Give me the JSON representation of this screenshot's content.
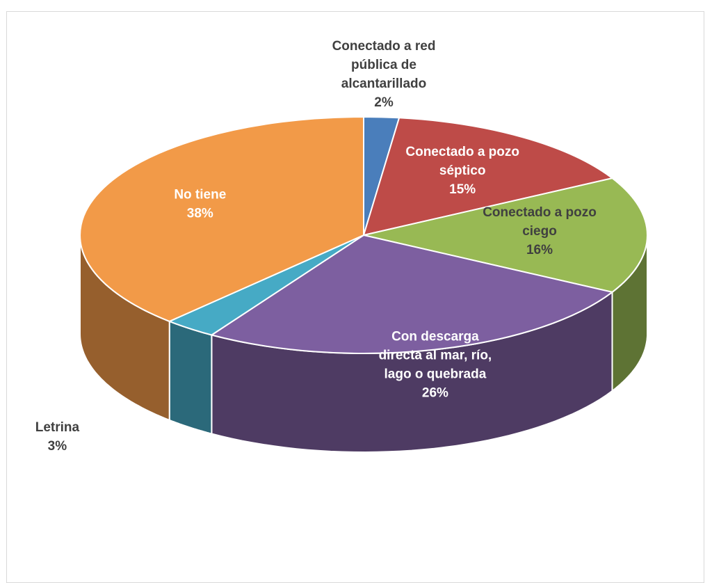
{
  "chart_data": {
    "type": "pie",
    "title": "",
    "categories": [
      "Conectado a red pública de alcantarillado",
      "Conectado a pozo séptico",
      "Conectado a pozo ciego",
      "Con descarga directa al mar, río, lago o quebrada",
      "Letrina",
      "No tiene"
    ],
    "values": [
      2,
      15,
      16,
      26,
      3,
      38
    ],
    "value_labels": [
      "2%",
      "15%",
      "16%",
      "26%",
      "3%",
      "38%"
    ],
    "label_lines": [
      [
        "Conectado a red",
        "pública de",
        "alcantarillado"
      ],
      [
        "Conectado a pozo",
        "séptico"
      ],
      [
        "Conectado a pozo",
        "ciego"
      ],
      [
        "Con descarga",
        "directa al mar, río,",
        "lago o quebrada"
      ],
      [
        "Letrina"
      ],
      [
        "No tiene"
      ]
    ],
    "colors": [
      "#4a7ebb",
      "#be4b48",
      "#98b954",
      "#7d5fa0",
      "#46aac5",
      "#f29a48"
    ],
    "label_colors": [
      "#404040",
      "#ffffff",
      "#404040",
      "#ffffff",
      "#404040",
      "#ffffff"
    ],
    "style": "3d-pie",
    "legend": "none"
  }
}
